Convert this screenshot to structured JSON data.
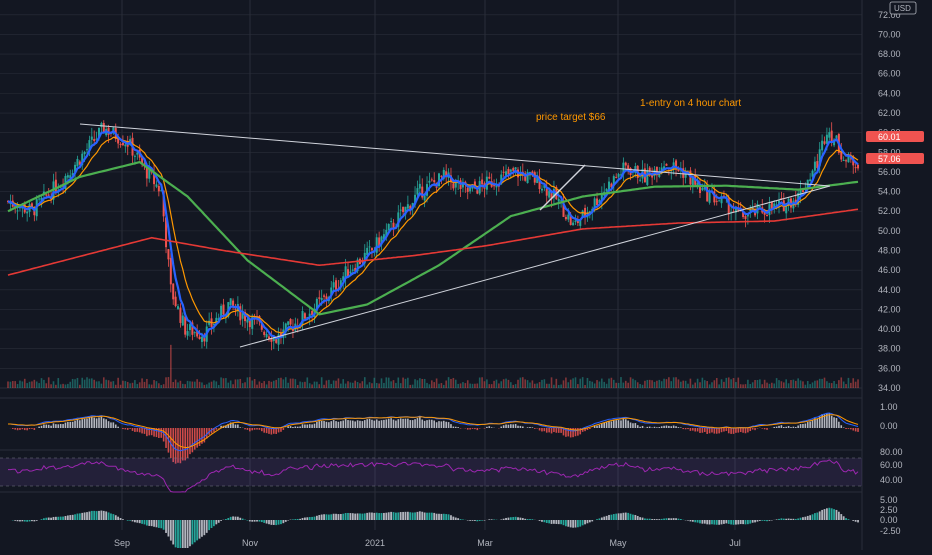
{
  "currency_label": "USD",
  "colors": {
    "background": "#131722",
    "grid": "#2a2e39",
    "axis_text": "#b2b5be",
    "candle_up": "#26a69a",
    "candle_down": "#ef5350",
    "ma_fast": "#2962ff",
    "ma_mid": "#ff9800",
    "ma_slow": "#4caf50",
    "ma_long": "#e53935",
    "annotation": "#ff9800",
    "macd_hist_pos": "#26a69a",
    "macd_hist_neg": "#ef5350",
    "rsi": "#9c27b0",
    "trendline": "#d1d4dc"
  },
  "annotations": {
    "entry_note": "1-entry on 4 hour chart",
    "target_note": "price target $66"
  },
  "price_badges": {
    "upper": "60.01",
    "current": "57.06"
  },
  "chart_data": {
    "type": "candlestick",
    "x_labels": [
      "Sep",
      "Nov",
      "2021",
      "Mar",
      "May",
      "Jul"
    ],
    "price_axis": {
      "ticks": [
        "72.00",
        "70.00",
        "68.00",
        "66.00",
        "64.00",
        "62.00",
        "60.00",
        "58.00",
        "56.00",
        "54.00",
        "52.00",
        "50.00",
        "48.00",
        "46.00",
        "44.00",
        "42.00",
        "40.00",
        "38.00",
        "36.00",
        "34.00"
      ],
      "ylim": [
        34,
        73
      ]
    },
    "price_path": [
      {
        "t": 0,
        "p": 53
      },
      {
        "t": 10,
        "p": 52
      },
      {
        "t": 22,
        "p": 55
      },
      {
        "t": 32,
        "p": 58
      },
      {
        "t": 40,
        "p": 60.5
      },
      {
        "t": 50,
        "p": 59
      },
      {
        "t": 58,
        "p": 56
      },
      {
        "t": 64,
        "p": 54
      },
      {
        "t": 68,
        "p": 44
      },
      {
        "t": 74,
        "p": 40
      },
      {
        "t": 82,
        "p": 39.5
      },
      {
        "t": 92,
        "p": 42.5
      },
      {
        "t": 104,
        "p": 40.5
      },
      {
        "t": 112,
        "p": 39
      },
      {
        "t": 122,
        "p": 41
      },
      {
        "t": 132,
        "p": 43
      },
      {
        "t": 142,
        "p": 46
      },
      {
        "t": 152,
        "p": 48
      },
      {
        "t": 162,
        "p": 51
      },
      {
        "t": 172,
        "p": 54
      },
      {
        "t": 182,
        "p": 55.5
      },
      {
        "t": 192,
        "p": 54
      },
      {
        "t": 202,
        "p": 55
      },
      {
        "t": 212,
        "p": 56
      },
      {
        "t": 222,
        "p": 55
      },
      {
        "t": 230,
        "p": 53
      },
      {
        "t": 236,
        "p": 50.5
      },
      {
        "t": 242,
        "p": 52
      },
      {
        "t": 250,
        "p": 54.5
      },
      {
        "t": 258,
        "p": 56.5
      },
      {
        "t": 266,
        "p": 55.5
      },
      {
        "t": 274,
        "p": 57
      },
      {
        "t": 282,
        "p": 56
      },
      {
        "t": 290,
        "p": 54
      },
      {
        "t": 298,
        "p": 53
      },
      {
        "t": 306,
        "p": 51.5
      },
      {
        "t": 314,
        "p": 52
      },
      {
        "t": 322,
        "p": 52.5
      },
      {
        "t": 330,
        "p": 53.5
      },
      {
        "t": 338,
        "p": 57
      },
      {
        "t": 342,
        "p": 60.5
      },
      {
        "t": 346,
        "p": 59
      },
      {
        "t": 350,
        "p": 57
      },
      {
        "t": 355,
        "p": 57.06
      }
    ],
    "ma_long_path": [
      {
        "t": 0,
        "p": 45.5
      },
      {
        "t": 60,
        "p": 49.3
      },
      {
        "t": 90,
        "p": 48
      },
      {
        "t": 130,
        "p": 46.5
      },
      {
        "t": 170,
        "p": 47.5
      },
      {
        "t": 200,
        "p": 48.5
      },
      {
        "t": 240,
        "p": 50.2
      },
      {
        "t": 280,
        "p": 50.8
      },
      {
        "t": 320,
        "p": 51
      },
      {
        "t": 355,
        "p": 52.2
      }
    ],
    "ma_slow_path": [
      {
        "t": 0,
        "p": 52
      },
      {
        "t": 30,
        "p": 55.5
      },
      {
        "t": 55,
        "p": 57
      },
      {
        "t": 75,
        "p": 53.5
      },
      {
        "t": 100,
        "p": 47
      },
      {
        "t": 130,
        "p": 41.5
      },
      {
        "t": 150,
        "p": 42.5
      },
      {
        "t": 180,
        "p": 46.5
      },
      {
        "t": 210,
        "p": 51.5
      },
      {
        "t": 240,
        "p": 53.5
      },
      {
        "t": 270,
        "p": 54.5
      },
      {
        "t": 300,
        "p": 54.6
      },
      {
        "t": 330,
        "p": 54.2
      },
      {
        "t": 355,
        "p": 55
      }
    ],
    "rsi_levels": {
      "ticks": [
        "80.00",
        "60.00",
        "40.00"
      ]
    },
    "macd_levels": {
      "ticks": [
        "1.00",
        "0.00"
      ]
    },
    "histogram_levels": {
      "ticks": [
        "5.00",
        "2.50",
        "0.00",
        "-2.50"
      ]
    }
  }
}
